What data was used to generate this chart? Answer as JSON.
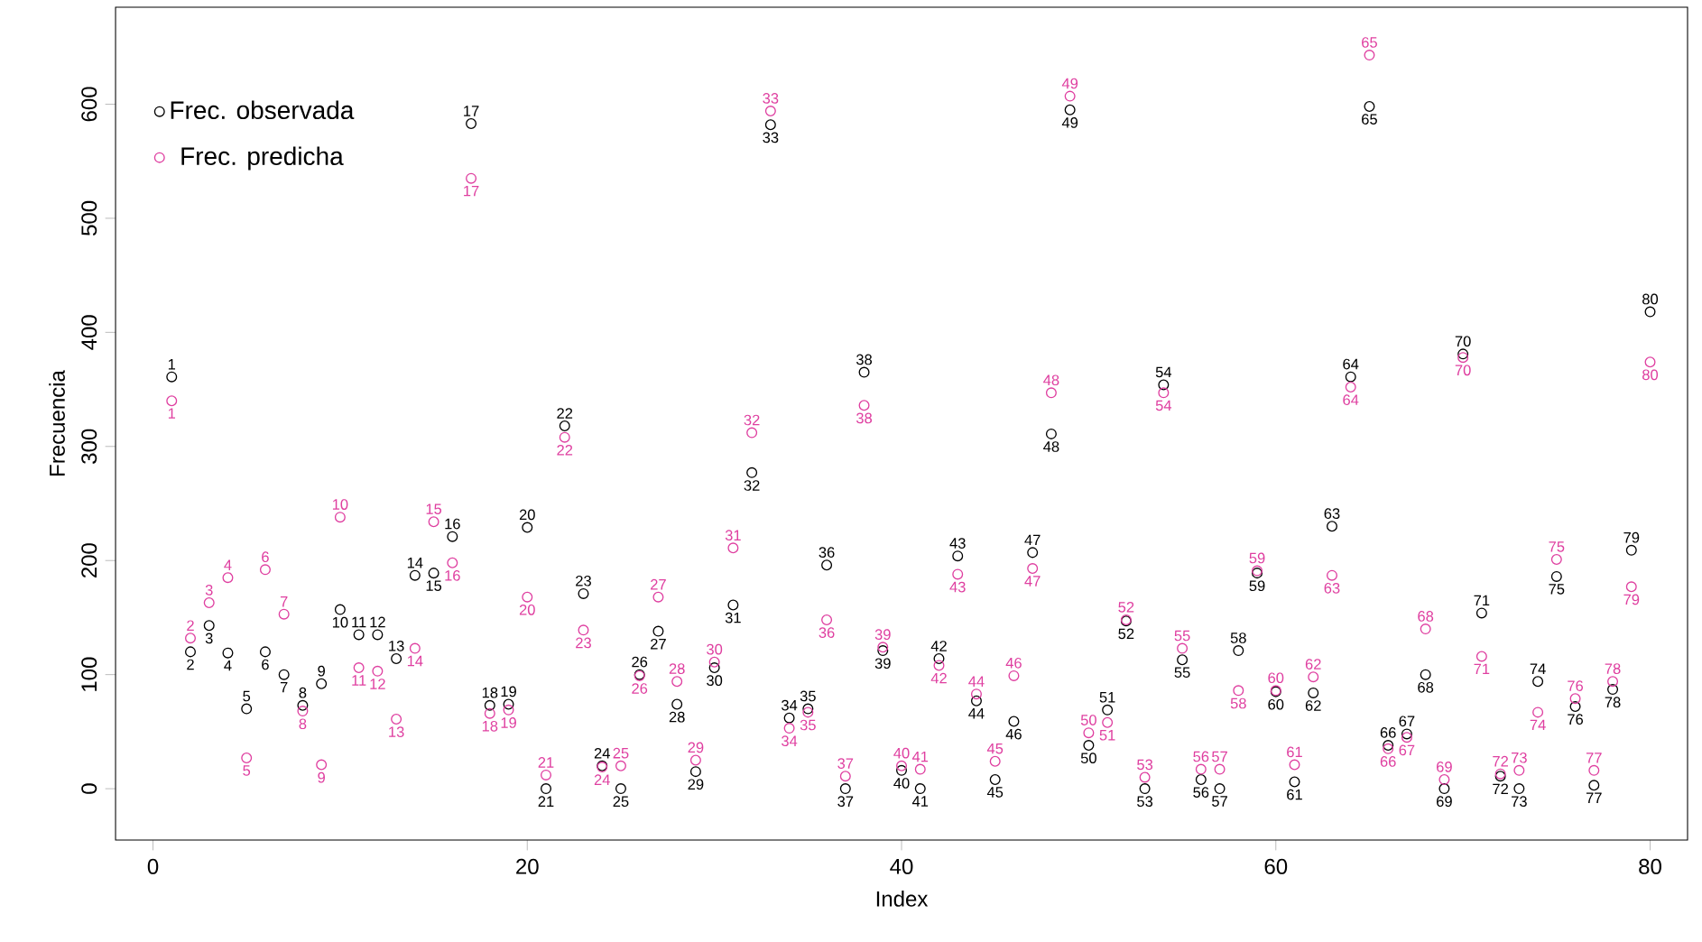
{
  "chart_data": {
    "type": "scatter",
    "xlabel": "Index",
    "ylabel": "Frecuencia",
    "x": [
      1,
      2,
      3,
      4,
      5,
      6,
      7,
      8,
      9,
      10,
      11,
      12,
      13,
      14,
      15,
      16,
      17,
      18,
      19,
      20,
      21,
      22,
      23,
      24,
      25,
      26,
      27,
      28,
      29,
      30,
      31,
      32,
      33,
      34,
      35,
      36,
      37,
      38,
      39,
      40,
      41,
      42,
      43,
      44,
      45,
      46,
      47,
      48,
      49,
      50,
      51,
      52,
      53,
      54,
      55,
      56,
      57,
      58,
      59,
      60,
      61,
      62,
      63,
      64,
      65,
      66,
      67,
      68,
      69,
      70,
      71,
      72,
      73,
      74,
      75,
      76,
      77,
      78,
      79,
      80
    ],
    "series": [
      {
        "name": "Frec. observada",
        "color": "#000000",
        "values": [
          361,
          120,
          143,
          119,
          70,
          120,
          100,
          73,
          92,
          157,
          135,
          135,
          114,
          187,
          189,
          221,
          583,
          73,
          74,
          229,
          0,
          318,
          171,
          20,
          0,
          100,
          138,
          74,
          15,
          106,
          161,
          277,
          582,
          62,
          70,
          196,
          0,
          365,
          121,
          16,
          0,
          114,
          204,
          77,
          8,
          59,
          207,
          311,
          595,
          38,
          69,
          147,
          0,
          354,
          113,
          8,
          0,
          121,
          189,
          85,
          6,
          84,
          230,
          361,
          598,
          38,
          48,
          100,
          0,
          381,
          154,
          11,
          0,
          94,
          186,
          72,
          3,
          87,
          209,
          418
        ]
      },
      {
        "name": "Frec. predicha",
        "color": "#df3fa0",
        "values": [
          340,
          132,
          163,
          185,
          27,
          192,
          153,
          68,
          21,
          238,
          106,
          103,
          61,
          123,
          234,
          198,
          535,
          66,
          69,
          168,
          12,
          308,
          139,
          19,
          20,
          99,
          168,
          94,
          25,
          111,
          211,
          312,
          594,
          53,
          67,
          148,
          11,
          336,
          124,
          20,
          17,
          108,
          188,
          83,
          24,
          99,
          193,
          347,
          607,
          49,
          58,
          148,
          10,
          347,
          123,
          17,
          17,
          86,
          191,
          86,
          21,
          98,
          187,
          352,
          643,
          35,
          45,
          140,
          8,
          378,
          116,
          13,
          16,
          67,
          201,
          79,
          16,
          94,
          177,
          374
        ]
      }
    ],
    "annotations": [
      {
        "text": "1",
        "x": 1,
        "y": 361
      },
      {
        "text": "2",
        "x": 2,
        "y": 120
      },
      {
        "text": "3",
        "x": 3,
        "y": 143
      },
      {
        "text": "4",
        "x": 4,
        "y": 119
      },
      {
        "text": "5",
        "x": 5,
        "y": 70
      },
      {
        "text": "6",
        "x": 6,
        "y": 120
      },
      {
        "text": "7",
        "x": 7,
        "y": 100
      },
      {
        "text": "8",
        "x": 8,
        "y": 73
      },
      {
        "text": "9",
        "x": 9,
        "y": 92
      },
      {
        "text": "10",
        "x": 10,
        "y": 157
      },
      {
        "text": "11",
        "x": 11,
        "y": 135
      },
      {
        "text": "12",
        "x": 12,
        "y": 135
      },
      {
        "text": "13",
        "x": 13,
        "y": 114
      },
      {
        "text": "14",
        "x": 14,
        "y": 187
      },
      {
        "text": "15",
        "x": 15,
        "y": 189
      },
      {
        "text": "16",
        "x": 16,
        "y": 221
      },
      {
        "text": "17",
        "x": 17,
        "y": 583
      },
      {
        "text": "18",
        "x": 18,
        "y": 73
      },
      {
        "text": "19",
        "x": 19,
        "y": 74
      },
      {
        "text": "20",
        "x": 20,
        "y": 229
      },
      {
        "text": "21",
        "x": 21,
        "y": 0
      },
      {
        "text": "22",
        "x": 22,
        "y": 318
      },
      {
        "text": "23",
        "x": 23,
        "y": 171
      },
      {
        "text": "24",
        "x": 24,
        "y": 20
      },
      {
        "text": "25",
        "x": 25,
        "y": 0
      },
      {
        "text": "26",
        "x": 26,
        "y": 100
      },
      {
        "text": "27",
        "x": 27,
        "y": 138
      },
      {
        "text": "28",
        "x": 28,
        "y": 74
      },
      {
        "text": "29",
        "x": 29,
        "y": 15
      },
      {
        "text": "30",
        "x": 30,
        "y": 106
      },
      {
        "text": "31",
        "x": 31,
        "y": 161
      },
      {
        "text": "32",
        "x": 32,
        "y": 277
      },
      {
        "text": "33",
        "x": 33,
        "y": 582
      },
      {
        "text": "34",
        "x": 34,
        "y": 62
      },
      {
        "text": "35",
        "x": 35,
        "y": 70
      },
      {
        "text": "36",
        "x": 36,
        "y": 196
      },
      {
        "text": "37",
        "x": 37,
        "y": 0
      },
      {
        "text": "38",
        "x": 38,
        "y": 365
      },
      {
        "text": "39",
        "x": 39,
        "y": 121
      },
      {
        "text": "40",
        "x": 40,
        "y": 16
      },
      {
        "text": "41",
        "x": 41,
        "y": 0
      },
      {
        "text": "42",
        "x": 42,
        "y": 114
      },
      {
        "text": "43",
        "x": 43,
        "y": 204
      },
      {
        "text": "44",
        "x": 44,
        "y": 77
      },
      {
        "text": "45",
        "x": 45,
        "y": 8
      },
      {
        "text": "46",
        "x": 46,
        "y": 59
      },
      {
        "text": "47",
        "x": 47,
        "y": 207
      },
      {
        "text": "48",
        "x": 48,
        "y": 311
      },
      {
        "text": "49",
        "x": 49,
        "y": 595
      },
      {
        "text": "50",
        "x": 50,
        "y": 38
      },
      {
        "text": "51",
        "x": 51,
        "y": 69
      },
      {
        "text": "52",
        "x": 52,
        "y": 147
      },
      {
        "text": "53",
        "x": 53,
        "y": 0
      },
      {
        "text": "54",
        "x": 54,
        "y": 354
      },
      {
        "text": "55",
        "x": 55,
        "y": 113
      },
      {
        "text": "56",
        "x": 56,
        "y": 8
      },
      {
        "text": "57",
        "x": 57,
        "y": 0
      },
      {
        "text": "58",
        "x": 58,
        "y": 121
      },
      {
        "text": "59",
        "x": 59,
        "y": 189
      },
      {
        "text": "60",
        "x": 60,
        "y": 85
      },
      {
        "text": "61",
        "x": 61,
        "y": 6
      },
      {
        "text": "62",
        "x": 62,
        "y": 84
      },
      {
        "text": "63",
        "x": 63,
        "y": 230
      },
      {
        "text": "64",
        "x": 64,
        "y": 361
      },
      {
        "text": "65",
        "x": 65,
        "y": 598
      },
      {
        "text": "66",
        "x": 66,
        "y": 38
      },
      {
        "text": "67",
        "x": 67,
        "y": 48
      },
      {
        "text": "68",
        "x": 68,
        "y": 100
      },
      {
        "text": "69",
        "x": 69,
        "y": 0
      },
      {
        "text": "70",
        "x": 70,
        "y": 381
      },
      {
        "text": "71",
        "x": 71,
        "y": 154
      },
      {
        "text": "72",
        "x": 72,
        "y": 11
      },
      {
        "text": "73",
        "x": 73,
        "y": 0
      },
      {
        "text": "74",
        "x": 74,
        "y": 94
      },
      {
        "text": "75",
        "x": 75,
        "y": 186
      },
      {
        "text": "76",
        "x": 76,
        "y": 72
      },
      {
        "text": "77",
        "x": 77,
        "y": 3
      },
      {
        "text": "78",
        "x": 78,
        "y": 87
      },
      {
        "text": "79",
        "x": 79,
        "y": 209
      },
      {
        "text": "80",
        "x": 80,
        "y": 418
      },
      {
        "text": "1",
        "x": 1,
        "y": 340
      },
      {
        "text": "2",
        "x": 2,
        "y": 132
      },
      {
        "text": "3",
        "x": 3,
        "y": 163
      },
      {
        "text": "4",
        "x": 4,
        "y": 185
      },
      {
        "text": "5",
        "x": 5,
        "y": 27
      },
      {
        "text": "6",
        "x": 6,
        "y": 192
      },
      {
        "text": "7",
        "x": 7,
        "y": 153
      },
      {
        "text": "8",
        "x": 8,
        "y": 68
      },
      {
        "text": "9",
        "x": 9,
        "y": 21
      },
      {
        "text": "10",
        "x": 10,
        "y": 238
      },
      {
        "text": "11",
        "x": 11,
        "y": 106
      },
      {
        "text": "12",
        "x": 12,
        "y": 103
      },
      {
        "text": "13",
        "x": 13,
        "y": 61
      },
      {
        "text": "14",
        "x": 14,
        "y": 123
      },
      {
        "text": "15",
        "x": 15,
        "y": 234
      },
      {
        "text": "16",
        "x": 16,
        "y": 198
      },
      {
        "text": "17",
        "x": 17,
        "y": 535
      },
      {
        "text": "18",
        "x": 18,
        "y": 66
      },
      {
        "text": "19",
        "x": 19,
        "y": 69
      },
      {
        "text": "20",
        "x": 20,
        "y": 168
      },
      {
        "text": "21",
        "x": 21,
        "y": 12
      },
      {
        "text": "22",
        "x": 22,
        "y": 308
      },
      {
        "text": "23",
        "x": 23,
        "y": 139
      },
      {
        "text": "24",
        "x": 24,
        "y": 19
      },
      {
        "text": "25",
        "x": 25,
        "y": 20
      },
      {
        "text": "26",
        "x": 26,
        "y": 99
      },
      {
        "text": "27",
        "x": 27,
        "y": 168
      },
      {
        "text": "28",
        "x": 28,
        "y": 94
      },
      {
        "text": "29",
        "x": 29,
        "y": 25
      },
      {
        "text": "30",
        "x": 30,
        "y": 111
      },
      {
        "text": "31",
        "x": 31,
        "y": 211
      },
      {
        "text": "32",
        "x": 32,
        "y": 312
      },
      {
        "text": "33",
        "x": 33,
        "y": 594
      },
      {
        "text": "34",
        "x": 34,
        "y": 53
      },
      {
        "text": "35",
        "x": 35,
        "y": 67
      },
      {
        "text": "36",
        "x": 36,
        "y": 148
      },
      {
        "text": "37",
        "x": 37,
        "y": 11
      },
      {
        "text": "38",
        "x": 38,
        "y": 336
      },
      {
        "text": "39",
        "x": 39,
        "y": 124
      },
      {
        "text": "40",
        "x": 40,
        "y": 20
      },
      {
        "text": "41",
        "x": 41,
        "y": 17
      },
      {
        "text": "42",
        "x": 42,
        "y": 108
      },
      {
        "text": "43",
        "x": 43,
        "y": 188
      },
      {
        "text": "44",
        "x": 44,
        "y": 83
      },
      {
        "text": "45",
        "x": 45,
        "y": 24
      },
      {
        "text": "46",
        "x": 46,
        "y": 99
      },
      {
        "text": "47",
        "x": 47,
        "y": 193
      },
      {
        "text": "48",
        "x": 48,
        "y": 347
      },
      {
        "text": "49",
        "x": 49,
        "y": 607
      },
      {
        "text": "50",
        "x": 50,
        "y": 49
      },
      {
        "text": "51",
        "x": 51,
        "y": 58
      },
      {
        "text": "52",
        "x": 52,
        "y": 148
      },
      {
        "text": "53",
        "x": 53,
        "y": 10
      },
      {
        "text": "54",
        "x": 54,
        "y": 347
      },
      {
        "text": "55",
        "x": 55,
        "y": 123
      },
      {
        "text": "56",
        "x": 56,
        "y": 17
      },
      {
        "text": "57",
        "x": 57,
        "y": 17
      },
      {
        "text": "58",
        "x": 58,
        "y": 86
      },
      {
        "text": "59",
        "x": 59,
        "y": 191
      },
      {
        "text": "60",
        "x": 60,
        "y": 86
      },
      {
        "text": "61",
        "x": 61,
        "y": 21
      },
      {
        "text": "62",
        "x": 62,
        "y": 98
      },
      {
        "text": "63",
        "x": 63,
        "y": 187
      },
      {
        "text": "64",
        "x": 64,
        "y": 352
      },
      {
        "text": "65",
        "x": 65,
        "y": 643
      },
      {
        "text": "66",
        "x": 66,
        "y": 35
      },
      {
        "text": "67",
        "x": 67,
        "y": 45
      },
      {
        "text": "68",
        "x": 68,
        "y": 140
      },
      {
        "text": "69",
        "x": 69,
        "y": 8
      },
      {
        "text": "70",
        "x": 70,
        "y": 378
      },
      {
        "text": "71",
        "x": 71,
        "y": 116
      },
      {
        "text": "72",
        "x": 72,
        "y": 13
      },
      {
        "text": "73",
        "x": 73,
        "y": 16
      },
      {
        "text": "74",
        "x": 74,
        "y": 67
      },
      {
        "text": "75",
        "x": 75,
        "y": 201
      },
      {
        "text": "76",
        "x": 76,
        "y": 79
      },
      {
        "text": "77",
        "x": 77,
        "y": 16
      },
      {
        "text": "78",
        "x": 78,
        "y": 94
      },
      {
        "text": "79",
        "x": 79,
        "y": 177
      },
      {
        "text": "80",
        "x": 80,
        "y": 374
      }
    ],
    "xlim": [
      -2,
      82
    ],
    "ylim": [
      -45,
      685
    ],
    "xticks": [
      0,
      20,
      40,
      60,
      80
    ],
    "yticks": [
      0,
      100,
      200,
      300,
      400,
      500,
      600
    ],
    "legend": "top left",
    "marker": "circle"
  }
}
